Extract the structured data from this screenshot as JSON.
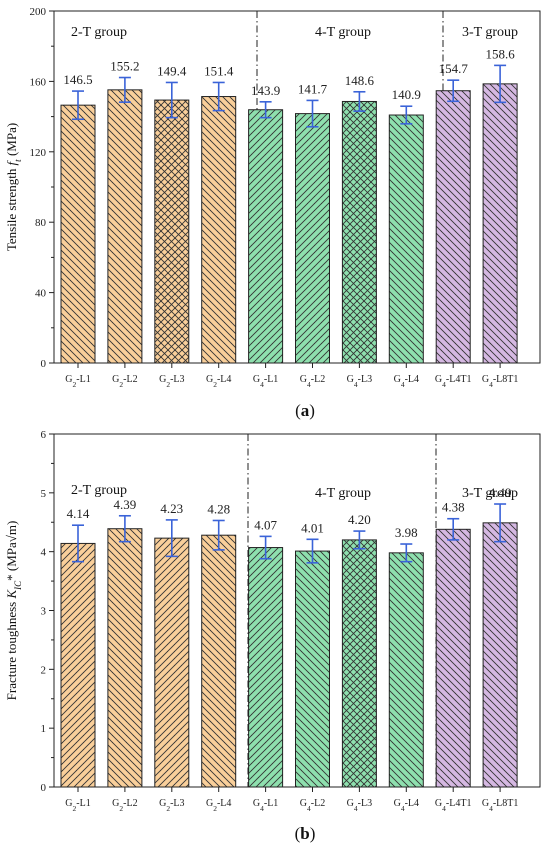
{
  "colors": {
    "orange": "#f9cf9a",
    "green": "#8ee0ae",
    "purple": "#d5b8e2",
    "error_bar": "#3a63d8",
    "bar_stroke": "#222222"
  },
  "chart_data": [
    {
      "type": "bar",
      "panel_label": "(a)",
      "ylabel_main": "Tensile strength ",
      "ylabel_symbol": "f",
      "ylabel_sub": "t",
      "ylabel_unit": " (MPa)",
      "ylim": [
        0,
        200
      ],
      "yticks": [
        0,
        40,
        80,
        120,
        160,
        200
      ],
      "grid": false,
      "groups": [
        {
          "label": "2-T group",
          "start": 0,
          "end": 3
        },
        {
          "label": "4-T group",
          "start": 4,
          "end": 7
        },
        {
          "label": "3-T group",
          "start": 8,
          "end": 9
        }
      ],
      "categories": [
        {
          "pre": "G",
          "sub": "2",
          "post": "-L1"
        },
        {
          "pre": "G",
          "sub": "2",
          "post": "-L2"
        },
        {
          "pre": "G",
          "sub": "2",
          "post": "-L3"
        },
        {
          "pre": "G",
          "sub": "2",
          "post": "-L4"
        },
        {
          "pre": "G",
          "sub": "4",
          "post": "-L1"
        },
        {
          "pre": "G",
          "sub": "4",
          "post": "-L2"
        },
        {
          "pre": "G",
          "sub": "4",
          "post": "-L3"
        },
        {
          "pre": "G",
          "sub": "4",
          "post": "-L4"
        },
        {
          "pre": "G",
          "sub": "4",
          "post": "-L4T1"
        },
        {
          "pre": "G",
          "sub": "4",
          "post": "-L8T1"
        }
      ],
      "values": [
        146.5,
        155.2,
        149.4,
        151.4,
        143.9,
        141.7,
        148.6,
        140.9,
        154.7,
        158.6
      ],
      "value_labels": [
        "146.5",
        "155.2",
        "149.4",
        "151.4",
        "143.9",
        "141.7",
        "148.6",
        "140.9",
        "154.7",
        "158.6"
      ],
      "errors": [
        8,
        7,
        10,
        8,
        4.5,
        7.5,
        5.5,
        5,
        6,
        10.5
      ],
      "fill": [
        "orange",
        "orange",
        "orange",
        "orange",
        "green",
        "green",
        "green",
        "green",
        "purple",
        "purple"
      ],
      "hatch": [
        "back",
        "back",
        "cross",
        "back",
        "fwd",
        "fwd",
        "cross",
        "back",
        "back",
        "back"
      ]
    },
    {
      "type": "bar",
      "panel_label": "(b)",
      "ylabel_main": "Fracture toughness ",
      "ylabel_symbol": "K",
      "ylabel_sub": "IC",
      "ylabel_unit": "* (MPa√m)",
      "ylim": [
        0,
        6
      ],
      "yticks": [
        0,
        1,
        2,
        3,
        4,
        5,
        6
      ],
      "grid": false,
      "groups": [
        {
          "label": "2-T group",
          "start": 0,
          "end": 3
        },
        {
          "label": "4-T group",
          "start": 4,
          "end": 7
        },
        {
          "label": "3-T group",
          "start": 8,
          "end": 9
        }
      ],
      "categories": [
        {
          "pre": "G",
          "sub": "2",
          "post": "-L1"
        },
        {
          "pre": "G",
          "sub": "2",
          "post": "-L2"
        },
        {
          "pre": "G",
          "sub": "2",
          "post": "-L3"
        },
        {
          "pre": "G",
          "sub": "2",
          "post": "-L4"
        },
        {
          "pre": "G",
          "sub": "4",
          "post": "-L1"
        },
        {
          "pre": "G",
          "sub": "4",
          "post": "-L2"
        },
        {
          "pre": "G",
          "sub": "4",
          "post": "-L3"
        },
        {
          "pre": "G",
          "sub": "4",
          "post": "-L4"
        },
        {
          "pre": "G",
          "sub": "4",
          "post": "-L4T1"
        },
        {
          "pre": "G",
          "sub": "4",
          "post": "-L8T1"
        }
      ],
      "values": [
        4.14,
        4.39,
        4.23,
        4.28,
        4.07,
        4.01,
        4.2,
        3.98,
        4.38,
        4.49
      ],
      "value_labels": [
        "4.14",
        "4.39",
        "4.23",
        "4.28",
        "4.07",
        "4.01",
        "4.20",
        "3.98",
        "4.38",
        "4.49"
      ],
      "errors": [
        0.31,
        0.22,
        0.31,
        0.25,
        0.19,
        0.2,
        0.15,
        0.15,
        0.18,
        0.32
      ],
      "fill": [
        "orange",
        "orange",
        "orange",
        "orange",
        "green",
        "green",
        "green",
        "green",
        "purple",
        "purple"
      ],
      "hatch": [
        "fwd",
        "back",
        "fwd",
        "back",
        "fwd",
        "back",
        "cross",
        "back",
        "back",
        "back"
      ]
    }
  ]
}
